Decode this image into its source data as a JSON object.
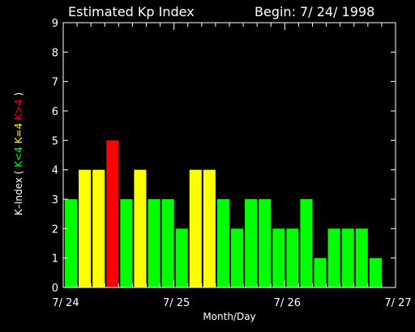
{
  "header": {
    "title": "Estimated Kp Index",
    "begin": "Begin: 7/ 24/ 1998"
  },
  "colors": {
    "background": "#000000",
    "axis": "#ffffff",
    "low": "#00ff00",
    "equal": "#ffff00",
    "high": "#ff0000"
  },
  "chart_data": {
    "type": "bar",
    "title": "Estimated Kp Index",
    "xlabel": "Month/Day",
    "ylabel": {
      "prefix": "K–Index ( ",
      "parts": [
        {
          "text": "K<4 ",
          "color": "#00ff00"
        },
        {
          "text": "K=4 ",
          "color": "#ffff00"
        },
        {
          "text": "K>4",
          "color": "#ff0000"
        }
      ],
      "suffix": " )"
    },
    "ylim": [
      0,
      9
    ],
    "yticks": [
      "0",
      "1",
      "2",
      "3",
      "4",
      "5",
      "6",
      "7",
      "8",
      "9"
    ],
    "xlim": [
      0,
      24
    ],
    "xticks": [
      {
        "x": 0,
        "label": "7/ 24"
      },
      {
        "x": 8,
        "label": "7/ 25"
      },
      {
        "x": 16,
        "label": "7/ 26"
      },
      {
        "x": 24,
        "label": "7/ 27"
      }
    ],
    "interval_hours": 3,
    "values": [
      3,
      4,
      4,
      5,
      3,
      4,
      3,
      3,
      2,
      4,
      4,
      3,
      2,
      3,
      3,
      2,
      2,
      3,
      1,
      2,
      2,
      2,
      1
    ]
  }
}
